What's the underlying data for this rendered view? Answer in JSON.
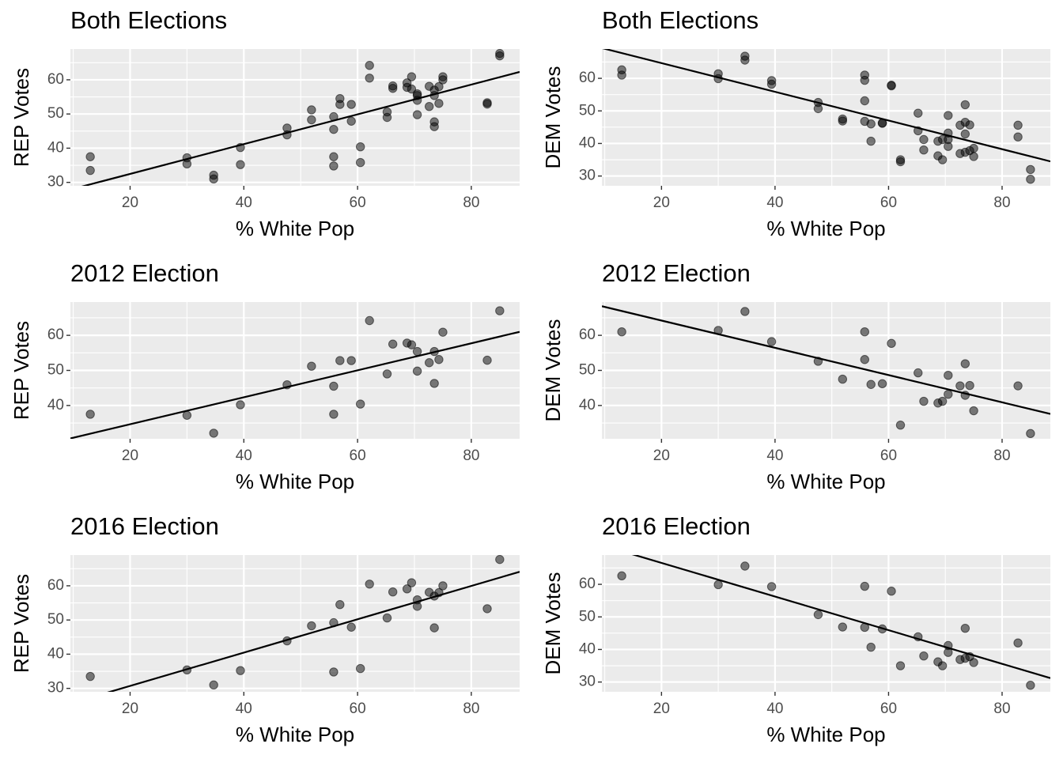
{
  "chart_data": [
    {
      "type": "scatter",
      "title": "Both Elections",
      "xlabel": "% White Pop",
      "ylabel": "REP Votes",
      "xlim": [
        9.5,
        88.5
      ],
      "ylim": [
        29,
        69
      ],
      "xticks": [
        20,
        40,
        60,
        80
      ],
      "yticks": [
        30,
        40,
        50,
        60
      ],
      "fit_line": {
        "x": [
          9.5,
          88.5
        ],
        "y": [
          27.9,
          62.3
        ]
      },
      "points": [
        [
          13,
          37.5
        ],
        [
          13,
          33.5
        ],
        [
          30,
          37.2
        ],
        [
          30,
          35.4
        ],
        [
          34.7,
          32.1
        ],
        [
          34.7,
          31.0
        ],
        [
          39.4,
          40.2
        ],
        [
          39.4,
          35.2
        ],
        [
          47.6,
          45.9
        ],
        [
          47.6,
          43.9
        ],
        [
          51.9,
          51.2
        ],
        [
          51.9,
          48.3
        ],
        [
          55.8,
          49.2
        ],
        [
          55.8,
          45.5
        ],
        [
          55.8,
          37.5
        ],
        [
          55.8,
          34.8
        ],
        [
          56.9,
          54.5
        ],
        [
          56.9,
          52.8
        ],
        [
          58.9,
          52.8
        ],
        [
          58.9,
          47.9
        ],
        [
          60.5,
          40.4
        ],
        [
          60.5,
          35.8
        ],
        [
          62.1,
          64.2
        ],
        [
          62.1,
          60.5
        ],
        [
          65.2,
          50.6
        ],
        [
          65.2,
          49.0
        ],
        [
          66.2,
          58.2
        ],
        [
          66.2,
          57.5
        ],
        [
          68.7,
          59.1
        ],
        [
          68.7,
          57.8
        ],
        [
          69.5,
          60.9
        ],
        [
          69.5,
          57.3
        ],
        [
          70.5,
          55.9
        ],
        [
          70.5,
          55.4
        ],
        [
          70.5,
          54.0
        ],
        [
          70.5,
          49.8
        ],
        [
          72.6,
          58.1
        ],
        [
          72.6,
          52.2
        ],
        [
          73.5,
          57.0
        ],
        [
          73.5,
          55.4
        ],
        [
          73.5,
          47.7
        ],
        [
          73.5,
          46.3
        ],
        [
          74.3,
          58.0
        ],
        [
          74.3,
          53.1
        ],
        [
          75.0,
          60.9
        ],
        [
          75.0,
          60.0
        ],
        [
          82.8,
          53.3
        ],
        [
          82.8,
          52.9
        ],
        [
          85.0,
          67.7
        ],
        [
          85.0,
          67.0
        ]
      ]
    },
    {
      "type": "scatter",
      "title": "Both Elections",
      "xlabel": "% White Pop",
      "ylabel": "DEM Votes",
      "xlim": [
        9.5,
        88.5
      ],
      "ylim": [
        27,
        69
      ],
      "xticks": [
        20,
        40,
        60,
        80
      ],
      "yticks": [
        30,
        40,
        50,
        60
      ],
      "fit_line": {
        "x": [
          9.5,
          88.5
        ],
        "y": [
          69.3,
          34.5
        ]
      },
      "points": [
        [
          13,
          62.6
        ],
        [
          13,
          61.0
        ],
        [
          30,
          61.4
        ],
        [
          30,
          59.9
        ],
        [
          34.7,
          66.8
        ],
        [
          34.7,
          65.6
        ],
        [
          39.4,
          59.3
        ],
        [
          39.4,
          58.2
        ],
        [
          47.6,
          52.6
        ],
        [
          47.6,
          50.7
        ],
        [
          51.9,
          47.5
        ],
        [
          51.9,
          46.9
        ],
        [
          55.8,
          61.0
        ],
        [
          55.8,
          59.4
        ],
        [
          55.8,
          53.1
        ],
        [
          55.8,
          46.8
        ],
        [
          56.9,
          46.0
        ],
        [
          56.9,
          40.7
        ],
        [
          58.9,
          46.2
        ],
        [
          58.9,
          46.3
        ],
        [
          60.5,
          57.7
        ],
        [
          60.5,
          57.9
        ],
        [
          62.1,
          35.0
        ],
        [
          62.1,
          34.4
        ],
        [
          65.2,
          49.3
        ],
        [
          65.2,
          43.9
        ],
        [
          66.2,
          41.2
        ],
        [
          66.2,
          38.0
        ],
        [
          68.7,
          40.7
        ],
        [
          68.7,
          36.2
        ],
        [
          69.5,
          41.2
        ],
        [
          69.5,
          35.0
        ],
        [
          70.5,
          48.6
        ],
        [
          70.5,
          43.2
        ],
        [
          70.5,
          41.2
        ],
        [
          70.5,
          39.1
        ],
        [
          72.6,
          45.6
        ],
        [
          72.6,
          36.9
        ],
        [
          73.5,
          51.9
        ],
        [
          73.5,
          46.5
        ],
        [
          73.5,
          42.9
        ],
        [
          73.5,
          37.3
        ],
        [
          74.3,
          45.7
        ],
        [
          74.3,
          37.8
        ],
        [
          75.0,
          38.5
        ],
        [
          75.0,
          36.0
        ],
        [
          82.8,
          45.6
        ],
        [
          82.8,
          42.0
        ],
        [
          85.0,
          32.0
        ],
        [
          85.0,
          29.0
        ]
      ]
    },
    {
      "type": "scatter",
      "title": "2012 Election",
      "xlabel": "% White Pop",
      "ylabel": "REP Votes",
      "xlim": [
        9.5,
        88.5
      ],
      "ylim": [
        30.5,
        69.5
      ],
      "xticks": [
        20,
        40,
        60,
        80
      ],
      "yticks": [
        40,
        50,
        60
      ],
      "fit_line": {
        "x": [
          9.5,
          88.5
        ],
        "y": [
          30.6,
          61.0
        ]
      },
      "points": [
        [
          13,
          37.5
        ],
        [
          30,
          37.2
        ],
        [
          34.7,
          32.1
        ],
        [
          39.4,
          40.2
        ],
        [
          47.6,
          45.9
        ],
        [
          51.9,
          51.2
        ],
        [
          55.8,
          45.5
        ],
        [
          55.8,
          37.5
        ],
        [
          56.9,
          52.8
        ],
        [
          58.9,
          52.8
        ],
        [
          60.5,
          40.4
        ],
        [
          62.1,
          64.2
        ],
        [
          65.2,
          49.0
        ],
        [
          66.2,
          57.5
        ],
        [
          68.7,
          57.8
        ],
        [
          69.5,
          57.3
        ],
        [
          70.5,
          55.4
        ],
        [
          70.5,
          49.8
        ],
        [
          72.6,
          52.2
        ],
        [
          73.5,
          55.4
        ],
        [
          73.5,
          46.3
        ],
        [
          74.3,
          53.1
        ],
        [
          75.0,
          60.9
        ],
        [
          82.8,
          52.9
        ],
        [
          85.0,
          67.0
        ]
      ]
    },
    {
      "type": "scatter",
      "title": "2012 Election",
      "xlabel": "% White Pop",
      "ylabel": "DEM Votes",
      "xlim": [
        9.5,
        88.5
      ],
      "ylim": [
        30.5,
        69.5
      ],
      "xticks": [
        20,
        40,
        60,
        80
      ],
      "yticks": [
        40,
        50,
        60
      ],
      "fit_line": {
        "x": [
          9.5,
          88.5
        ],
        "y": [
          68.3,
          37.6
        ]
      },
      "points": [
        [
          13,
          61.0
        ],
        [
          30,
          61.4
        ],
        [
          34.7,
          66.8
        ],
        [
          39.4,
          58.2
        ],
        [
          47.6,
          52.6
        ],
        [
          51.9,
          47.5
        ],
        [
          55.8,
          61.0
        ],
        [
          55.8,
          53.1
        ],
        [
          56.9,
          46.0
        ],
        [
          58.9,
          46.2
        ],
        [
          60.5,
          57.7
        ],
        [
          62.1,
          34.4
        ],
        [
          65.2,
          49.3
        ],
        [
          66.2,
          41.2
        ],
        [
          68.7,
          40.7
        ],
        [
          69.5,
          41.2
        ],
        [
          70.5,
          48.6
        ],
        [
          70.5,
          43.2
        ],
        [
          72.6,
          45.6
        ],
        [
          73.5,
          51.9
        ],
        [
          73.5,
          42.9
        ],
        [
          74.3,
          45.7
        ],
        [
          75.0,
          38.5
        ],
        [
          82.8,
          45.6
        ],
        [
          85.0,
          32.0
        ]
      ]
    },
    {
      "type": "scatter",
      "title": "2016 Election",
      "xlabel": "% White Pop",
      "ylabel": "REP Votes",
      "xlim": [
        9.5,
        88.5
      ],
      "ylim": [
        29,
        69
      ],
      "xticks": [
        20,
        40,
        60,
        80
      ],
      "yticks": [
        30,
        40,
        50,
        60
      ],
      "fit_line": {
        "x": [
          9.5,
          88.5
        ],
        "y": [
          25.6,
          64.1
        ]
      },
      "points": [
        [
          13,
          33.5
        ],
        [
          30,
          35.4
        ],
        [
          34.7,
          31.0
        ],
        [
          39.4,
          35.2
        ],
        [
          47.6,
          43.9
        ],
        [
          51.9,
          48.3
        ],
        [
          55.8,
          49.2
        ],
        [
          55.8,
          34.8
        ],
        [
          56.9,
          54.5
        ],
        [
          58.9,
          47.9
        ],
        [
          60.5,
          35.8
        ],
        [
          62.1,
          60.5
        ],
        [
          65.2,
          50.6
        ],
        [
          66.2,
          58.2
        ],
        [
          68.7,
          59.1
        ],
        [
          69.5,
          60.9
        ],
        [
          70.5,
          55.9
        ],
        [
          70.5,
          54.0
        ],
        [
          72.6,
          58.1
        ],
        [
          73.5,
          57.0
        ],
        [
          73.5,
          47.7
        ],
        [
          74.3,
          58.0
        ],
        [
          75.0,
          60.0
        ],
        [
          82.8,
          53.3
        ],
        [
          85.0,
          67.7
        ]
      ]
    },
    {
      "type": "scatter",
      "title": "2016 Election",
      "xlabel": "% White Pop",
      "ylabel": "DEM Votes",
      "xlim": [
        9.5,
        88.5
      ],
      "ylim": [
        27,
        69
      ],
      "xticks": [
        20,
        40,
        60,
        80
      ],
      "yticks": [
        30,
        40,
        50,
        60
      ],
      "fit_line": {
        "x": [
          9.5,
          88.5
        ],
        "y": [
          72.0,
          31.2
        ]
      },
      "points": [
        [
          13,
          62.6
        ],
        [
          30,
          59.9
        ],
        [
          34.7,
          65.6
        ],
        [
          39.4,
          59.3
        ],
        [
          47.6,
          50.7
        ],
        [
          51.9,
          46.9
        ],
        [
          55.8,
          59.4
        ],
        [
          55.8,
          46.8
        ],
        [
          56.9,
          40.7
        ],
        [
          58.9,
          46.3
        ],
        [
          60.5,
          57.9
        ],
        [
          62.1,
          35.0
        ],
        [
          65.2,
          43.9
        ],
        [
          66.2,
          38.0
        ],
        [
          68.7,
          36.2
        ],
        [
          69.5,
          35.0
        ],
        [
          70.5,
          41.2
        ],
        [
          70.5,
          39.1
        ],
        [
          72.6,
          36.9
        ],
        [
          73.5,
          46.5
        ],
        [
          73.5,
          37.3
        ],
        [
          74.3,
          37.8
        ],
        [
          75.0,
          36.0
        ],
        [
          82.8,
          42.0
        ],
        [
          85.0,
          29.0
        ]
      ]
    }
  ]
}
